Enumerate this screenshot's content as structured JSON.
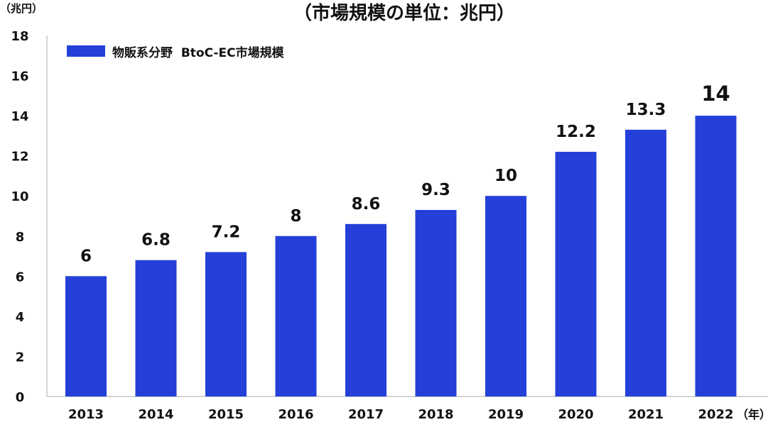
{
  "chart_data": {
    "type": "bar",
    "title": "（市場規模の単位：兆円）",
    "ylabel": "（兆円）",
    "xlabel": "（年）",
    "categories": [
      "2013",
      "2014",
      "2015",
      "2016",
      "2017",
      "2018",
      "2019",
      "2020",
      "2021",
      "2022"
    ],
    "series": [
      {
        "name": "物販系分野  BtoC-EC市場規模",
        "values": [
          6,
          6.8,
          7.2,
          8,
          8.6,
          9.3,
          10,
          12.2,
          13.3,
          14
        ],
        "labels": [
          "6",
          "6.8",
          "7.2",
          "8",
          "8.6",
          "9.3",
          "10",
          "12.2",
          "13.3",
          "14"
        ],
        "color": "#2440D8"
      }
    ],
    "ylim": [
      0,
      18
    ],
    "yticks": [
      0,
      2,
      4,
      6,
      8,
      10,
      12,
      14,
      16,
      18
    ],
    "grid": false,
    "legend": "top-left"
  }
}
